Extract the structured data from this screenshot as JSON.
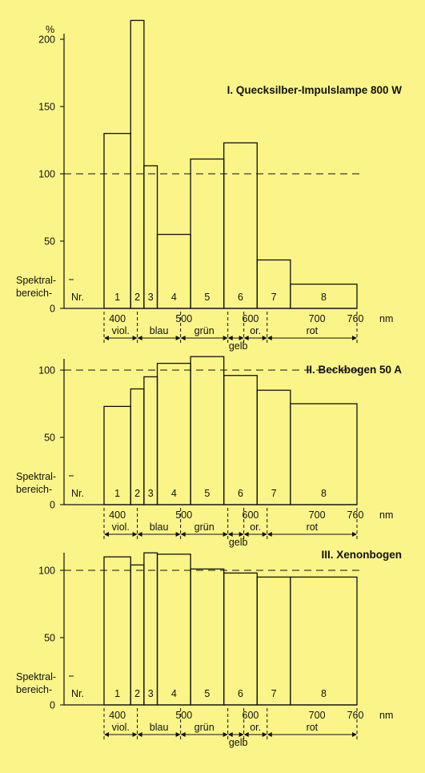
{
  "chart_data": [
    {
      "type": "bar",
      "title": "I. Quecksilber-Impulslampe 800 W",
      "ylabel": "%",
      "yticks": [
        "200",
        "150",
        "100",
        "50",
        "0"
      ],
      "ylim": [
        0,
        220
      ],
      "reference_line": 100,
      "row_label_1": "Spektral-",
      "row_label_2": "bereich-",
      "row_label_3": "Nr.",
      "xunit": "nm",
      "xtick_labels": [
        "400",
        "500",
        "600",
        "700",
        "760"
      ],
      "bands": [
        {
          "nr": "1",
          "from": 380,
          "to": 420,
          "value": 130
        },
        {
          "nr": "2",
          "from": 420,
          "to": 440,
          "value": 214
        },
        {
          "nr": "3",
          "from": 440,
          "to": 460,
          "value": 106
        },
        {
          "nr": "4",
          "from": 460,
          "to": 510,
          "value": 55
        },
        {
          "nr": "5",
          "from": 510,
          "to": 560,
          "value": 111
        },
        {
          "nr": "6",
          "from": 560,
          "to": 610,
          "value": 123
        },
        {
          "nr": "7",
          "from": 610,
          "to": 660,
          "value": 36
        },
        {
          "nr": "8",
          "from": 660,
          "to": 760,
          "value": 18
        }
      ],
      "colors": [
        {
          "name": "viol.",
          "from": 380,
          "to": 430
        },
        {
          "name": "blau",
          "from": 430,
          "to": 495
        },
        {
          "name": "grün",
          "from": 495,
          "to": 566
        },
        {
          "name": "or.",
          "from": 590,
          "to": 625
        },
        {
          "name": "rot",
          "from": 625,
          "to": 760
        }
      ],
      "gelb": {
        "name": "gelb",
        "from": 566,
        "to": 590
      }
    },
    {
      "type": "bar",
      "title": "II. Beckbogen 50 A",
      "yticks": [
        "100",
        "50",
        "0"
      ],
      "ylim": [
        0,
        110
      ],
      "reference_line": 100,
      "row_label_1": "Spektral-",
      "row_label_2": "bereich-",
      "row_label_3": "Nr.",
      "xunit": "nm",
      "xtick_labels": [
        "400",
        "500",
        "600",
        "700",
        "760"
      ],
      "bands": [
        {
          "nr": "1",
          "from": 380,
          "to": 420,
          "value": 73
        },
        {
          "nr": "2",
          "from": 420,
          "to": 440,
          "value": 86
        },
        {
          "nr": "3",
          "from": 440,
          "to": 460,
          "value": 95
        },
        {
          "nr": "4",
          "from": 460,
          "to": 510,
          "value": 105
        },
        {
          "nr": "5",
          "from": 510,
          "to": 560,
          "value": 110
        },
        {
          "nr": "6",
          "from": 560,
          "to": 610,
          "value": 96
        },
        {
          "nr": "7",
          "from": 610,
          "to": 660,
          "value": 85
        },
        {
          "nr": "8",
          "from": 660,
          "to": 760,
          "value": 75
        }
      ],
      "colors": [
        {
          "name": "viol.",
          "from": 380,
          "to": 430
        },
        {
          "name": "blau",
          "from": 430,
          "to": 495
        },
        {
          "name": "grün",
          "from": 495,
          "to": 566
        },
        {
          "name": "or.",
          "from": 590,
          "to": 625
        },
        {
          "name": "rot",
          "from": 625,
          "to": 760
        }
      ],
      "gelb": {
        "name": "gelb",
        "from": 566,
        "to": 590
      }
    },
    {
      "type": "bar",
      "title": "III. Xenonbogen",
      "yticks": [
        "100",
        "50",
        "0"
      ],
      "ylim": [
        0,
        115
      ],
      "reference_line": 100,
      "row_label_1": "Spektral-",
      "row_label_2": "bereich-",
      "row_label_3": "Nr.",
      "xunit": "nm",
      "xtick_labels": [
        "400",
        "500",
        "600",
        "700",
        "760"
      ],
      "bands": [
        {
          "nr": "1",
          "from": 380,
          "to": 420,
          "value": 110
        },
        {
          "nr": "2",
          "from": 420,
          "to": 440,
          "value": 104
        },
        {
          "nr": "3",
          "from": 440,
          "to": 460,
          "value": 113
        },
        {
          "nr": "4",
          "from": 460,
          "to": 510,
          "value": 112
        },
        {
          "nr": "5",
          "from": 510,
          "to": 560,
          "value": 101
        },
        {
          "nr": "6",
          "from": 560,
          "to": 610,
          "value": 98
        },
        {
          "nr": "7",
          "from": 610,
          "to": 660,
          "value": 95
        },
        {
          "nr": "8",
          "from": 660,
          "to": 760,
          "value": 95
        }
      ],
      "colors": [
        {
          "name": "viol.",
          "from": 380,
          "to": 430
        },
        {
          "name": "blau",
          "from": 430,
          "to": 495
        },
        {
          "name": "grün",
          "from": 495,
          "to": 566
        },
        {
          "name": "or.",
          "from": 590,
          "to": 625
        },
        {
          "name": "rot",
          "from": 625,
          "to": 760
        }
      ],
      "gelb": {
        "name": "gelb",
        "from": 566,
        "to": 590
      }
    }
  ]
}
